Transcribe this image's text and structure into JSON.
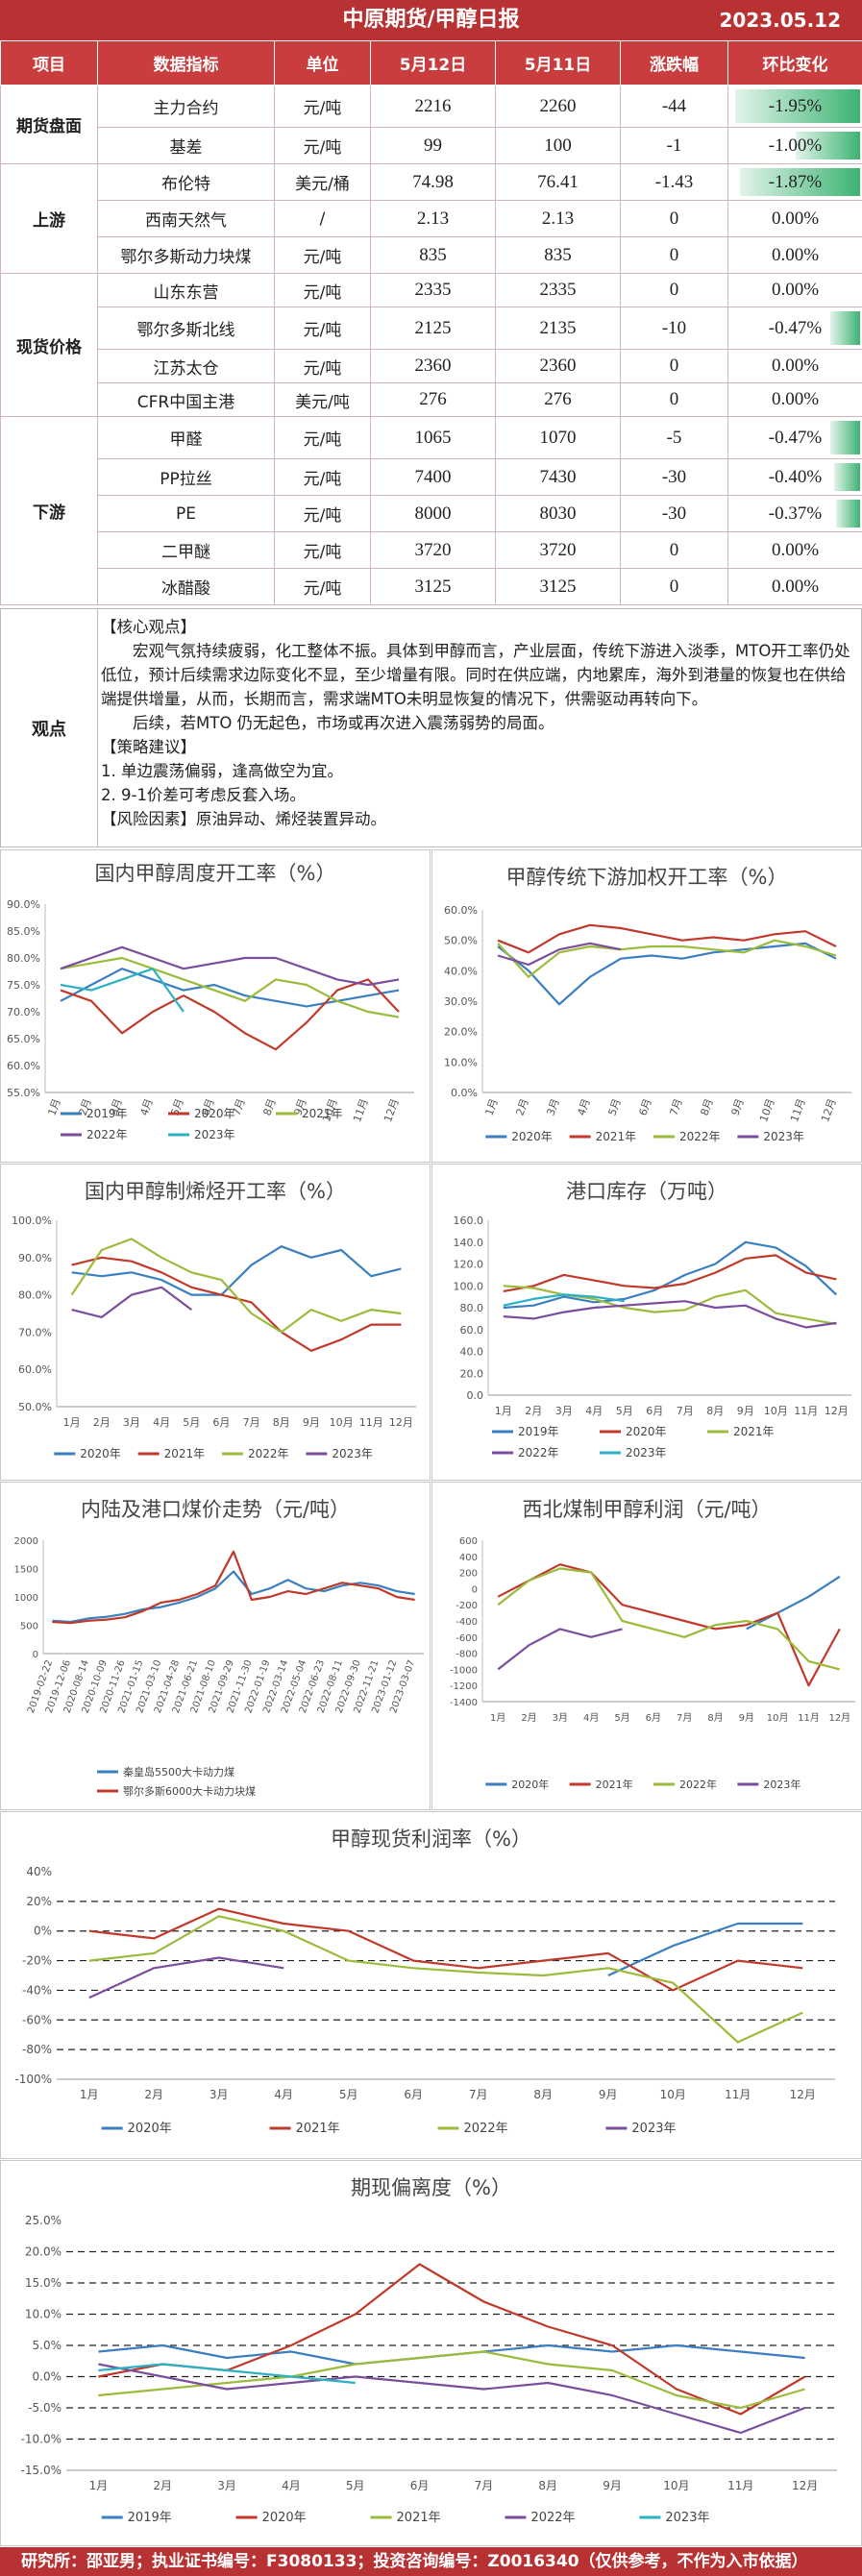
{
  "header": {
    "title": "中原期货/甲醇日报",
    "date": "2023.05.12"
  },
  "table": {
    "columns": [
      "项目",
      "数据指标",
      "单位",
      "5月12日",
      "5月11日",
      "涨跌幅",
      "环比变化"
    ],
    "groups": [
      {
        "category": "期货盘面",
        "rows": [
          {
            "name": "主力合约",
            "unit": "元/吨",
            "d1": "2216",
            "d2": "2260",
            "chg": "-44",
            "pct": "-1.95%",
            "bar": -1.95
          },
          {
            "name": "基差",
            "unit": "元/吨",
            "d1": "99",
            "d2": "100",
            "chg": "-1",
            "pct": "-1.00%",
            "bar": -1.0
          }
        ]
      },
      {
        "category": "上游",
        "rows": [
          {
            "name": "布伦特",
            "unit": "美元/桶",
            "d1": "74.98",
            "d2": "76.41",
            "chg": "-1.43",
            "pct": "-1.87%",
            "bar": -1.87
          },
          {
            "name": "西南天然气",
            "unit": "/",
            "d1": "2.13",
            "d2": "2.13",
            "chg": "0",
            "pct": "0.00%",
            "bar": 0
          },
          {
            "name": "鄂尔多斯动力块煤",
            "unit": "元/吨",
            "d1": "835",
            "d2": "835",
            "chg": "0",
            "pct": "0.00%",
            "bar": 0
          }
        ]
      },
      {
        "category": "现货价格",
        "rows": [
          {
            "name": "山东东营",
            "unit": "元/吨",
            "d1": "2335",
            "d2": "2335",
            "chg": "0",
            "pct": "0.00%",
            "bar": 0
          },
          {
            "name": "鄂尔多斯北线",
            "unit": "元/吨",
            "d1": "2125",
            "d2": "2135",
            "chg": "-10",
            "pct": "-0.47%",
            "bar": -0.47
          },
          {
            "name": "江苏太仓",
            "unit": "元/吨",
            "d1": "2360",
            "d2": "2360",
            "chg": "0",
            "pct": "0.00%",
            "bar": 0
          },
          {
            "name": "CFR中国主港",
            "unit": "美元/吨",
            "d1": "276",
            "d2": "276",
            "chg": "0",
            "pct": "0.00%",
            "bar": 0
          }
        ]
      },
      {
        "category": "下游",
        "rows": [
          {
            "name": "甲醛",
            "unit": "元/吨",
            "d1": "1065",
            "d2": "1070",
            "chg": "-5",
            "pct": "-0.47%",
            "bar": -0.47
          },
          {
            "name": "PP拉丝",
            "unit": "元/吨",
            "d1": "7400",
            "d2": "7430",
            "chg": "-30",
            "pct": "-0.40%",
            "bar": -0.4
          },
          {
            "name": "PE",
            "unit": "元/吨",
            "d1": "8000",
            "d2": "8030",
            "chg": "-30",
            "pct": "-0.37%",
            "bar": -0.37
          },
          {
            "name": "二甲醚",
            "unit": "元/吨",
            "d1": "3720",
            "d2": "3720",
            "chg": "0",
            "pct": "0.00%",
            "bar": 0
          },
          {
            "name": "冰醋酸",
            "unit": "元/吨",
            "d1": "3125",
            "d2": "3125",
            "chg": "0",
            "pct": "0.00%",
            "bar": 0
          }
        ]
      }
    ]
  },
  "viewpoint": {
    "label": "观点",
    "lines": [
      "【核心观点】",
      "宏观气氛持续疲弱，化工整体不振。具体到甲醇而言，产业层面，传统下游进入淡季，MTO开工率仍处低位，预计后续需求边际变化不显，至少增量有限。同时在供应端，内地累库，海外到港量的恢复也在供给端提供增量，从而，长期而言，需求端MTO未明显恢复的情况下，供需驱动再转向下。",
      "后续，若MTO 仍无起色，市场或再次进入震荡弱势的局面。",
      "【策略建议】",
      "1. 单边震荡偏弱，逢高做空为宜。",
      "2. 9-1价差可考虑反套入场。",
      "【风险因素】原油异动、烯烃装置异动。"
    ]
  },
  "colors": {
    "y2019": "#3a7fbf",
    "y2020": "#c0392b",
    "y2021": "#9bbb3b",
    "y2022": "#7b4d9c",
    "y2023": "#2bb0c4",
    "accent": "#b83234",
    "bar": "#3cb371"
  },
  "footer": {
    "text": "研究所：邵亚男；执业证书编号：F3080133；投资咨询编号：Z0016340（仅供参考，不作为入市依据）"
  },
  "chart_data": [
    {
      "id": "c1",
      "type": "line",
      "title": "国内甲醇周度开工率（%）",
      "x": [
        "1月",
        "2月",
        "3月",
        "4月",
        "5月",
        "6月",
        "7月",
        "8月",
        "9月",
        "10月",
        "11月",
        "12月"
      ],
      "ylim": [
        55,
        90
      ],
      "yticks": [
        "90.0%",
        "85.0%",
        "80.0%",
        "75.0%",
        "70.0%",
        "65.0%",
        "60.0%",
        "55.0%"
      ],
      "series": [
        {
          "name": "2019年",
          "color": "#3a7fbf",
          "values": [
            72,
            75,
            78,
            76,
            74,
            75,
            73,
            72,
            71,
            72,
            73,
            74
          ]
        },
        {
          "name": "2020年",
          "color": "#c0392b",
          "values": [
            74,
            72,
            66,
            70,
            73,
            70,
            66,
            63,
            68,
            74,
            76,
            70
          ]
        },
        {
          "name": "2021年",
          "color": "#9bbb3b",
          "values": [
            78,
            79,
            80,
            78,
            76,
            74,
            72,
            76,
            75,
            72,
            70,
            69
          ]
        },
        {
          "name": "2022年",
          "color": "#7b4d9c",
          "values": [
            78,
            80,
            82,
            80,
            78,
            79,
            80,
            80,
            78,
            76,
            75,
            76
          ]
        },
        {
          "name": "2023年",
          "color": "#2bb0c4",
          "values": [
            75,
            74,
            76,
            78,
            70,
            null,
            null,
            null,
            null,
            null,
            null,
            null
          ]
        }
      ]
    },
    {
      "id": "c2",
      "type": "line",
      "title": "甲醇传统下游加权开工率（%）",
      "x": [
        "1月",
        "2月",
        "3月",
        "4月",
        "5月",
        "6月",
        "7月",
        "8月",
        "9月",
        "10月",
        "11月",
        "12月"
      ],
      "ylim": [
        0,
        60
      ],
      "yticks": [
        "60.0%",
        "50.0%",
        "40.0%",
        "30.0%",
        "20.0%",
        "10.0%",
        "0.0%"
      ],
      "series": [
        {
          "name": "2020年",
          "color": "#3a7fbf",
          "values": [
            48,
            40,
            29,
            38,
            44,
            45,
            44,
            46,
            47,
            48,
            49,
            44
          ]
        },
        {
          "name": "2021年",
          "color": "#c0392b",
          "values": [
            50,
            46,
            52,
            55,
            54,
            52,
            50,
            51,
            50,
            52,
            53,
            48
          ]
        },
        {
          "name": "2022年",
          "color": "#9bbb3b",
          "values": [
            49,
            38,
            46,
            48,
            47,
            48,
            48,
            47,
            46,
            50,
            48,
            45
          ]
        },
        {
          "name": "2023年",
          "color": "#7b4d9c",
          "values": [
            45,
            42,
            47,
            49,
            47,
            null,
            null,
            null,
            null,
            null,
            null,
            null
          ]
        }
      ]
    },
    {
      "id": "c3",
      "type": "line",
      "title": "国内甲醇制烯烃开工率（%）",
      "x": [
        "1月",
        "2月",
        "3月",
        "4月",
        "5月",
        "6月",
        "7月",
        "8月",
        "9月",
        "10月",
        "11月",
        "12月"
      ],
      "ylim": [
        50,
        100
      ],
      "yticks": [
        "100.0%",
        "90.0%",
        "80.0%",
        "70.0%",
        "60.0%",
        "50.0%"
      ],
      "series": [
        {
          "name": "2020年",
          "color": "#3a7fbf",
          "values": [
            86,
            85,
            86,
            84,
            80,
            80,
            88,
            93,
            90,
            92,
            85,
            87
          ]
        },
        {
          "name": "2021年",
          "color": "#c0392b",
          "values": [
            88,
            90,
            89,
            86,
            82,
            80,
            78,
            70,
            65,
            68,
            72,
            72
          ]
        },
        {
          "name": "2022年",
          "color": "#9bbb3b",
          "values": [
            80,
            92,
            95,
            90,
            86,
            84,
            75,
            70,
            76,
            73,
            76,
            75
          ]
        },
        {
          "name": "2023年",
          "color": "#7b4d9c",
          "values": [
            76,
            74,
            80,
            82,
            76,
            null,
            null,
            null,
            null,
            null,
            null,
            null
          ]
        }
      ]
    },
    {
      "id": "c4",
      "type": "line",
      "title": "港口库存（万吨）",
      "x": [
        "1月",
        "2月",
        "3月",
        "4月",
        "5月",
        "6月",
        "7月",
        "8月",
        "9月",
        "10月",
        "11月",
        "12月"
      ],
      "ylim": [
        0,
        160
      ],
      "yticks": [
        "160.0",
        "140.0",
        "120.0",
        "100.0",
        "80.0",
        "60.0",
        "40.0",
        "20.0",
        "0.0"
      ],
      "series": [
        {
          "name": "2019年",
          "color": "#3a7fbf",
          "values": [
            80,
            82,
            90,
            85,
            88,
            96,
            110,
            120,
            140,
            135,
            118,
            92
          ]
        },
        {
          "name": "2020年",
          "color": "#c0392b",
          "values": [
            95,
            100,
            110,
            105,
            100,
            98,
            102,
            112,
            125,
            128,
            112,
            106
          ]
        },
        {
          "name": "2021年",
          "color": "#9bbb3b",
          "values": [
            100,
            98,
            92,
            88,
            80,
            76,
            78,
            90,
            96,
            75,
            70,
            65
          ]
        },
        {
          "name": "2022年",
          "color": "#7b4d9c",
          "values": [
            72,
            70,
            76,
            80,
            82,
            84,
            86,
            80,
            82,
            70,
            62,
            66
          ]
        },
        {
          "name": "2023年",
          "color": "#2bb0c4",
          "values": [
            82,
            88,
            92,
            90,
            86,
            null,
            null,
            null,
            null,
            null,
            null,
            null
          ]
        }
      ]
    },
    {
      "id": "c5",
      "type": "line",
      "title": "内陆及港口煤价走势（元/吨）",
      "x": [
        "2019-02-22",
        "2019-12-06",
        "2020-08-14",
        "2020-10-09",
        "2020-11-26",
        "2021-01-15",
        "2021-03-10",
        "2021-04-28",
        "2021-06-21",
        "2021-08-10",
        "2021-09-29",
        "2021-11-30",
        "2022-01-19",
        "2022-03-14",
        "2022-05-04",
        "2022-06-23",
        "2022-08-11",
        "2022-09-30",
        "2022-11-21",
        "2023-01-12",
        "2023-03-07"
      ],
      "ylim": [
        0,
        2000
      ],
      "yticks": [
        "2000",
        "1500",
        "1000",
        "500",
        "0"
      ],
      "series": [
        {
          "name": "秦皇岛5500大卡动力煤",
          "color": "#3a7fbf",
          "values": [
            580,
            560,
            620,
            650,
            700,
            780,
            820,
            900,
            1000,
            1150,
            1450,
            1050,
            1150,
            1300,
            1150,
            1100,
            1200,
            1250,
            1200,
            1100,
            1050
          ]
        },
        {
          "name": "鄂尔多斯6000大卡动力块煤",
          "color": "#c0392b",
          "values": [
            560,
            540,
            580,
            600,
            640,
            750,
            900,
            950,
            1050,
            1200,
            1800,
            950,
            1000,
            1100,
            1050,
            1150,
            1250,
            1200,
            1150,
            1000,
            950
          ]
        }
      ]
    },
    {
      "id": "c6",
      "type": "line",
      "title": "西北煤制甲醇利润（元/吨）",
      "x": [
        "1月",
        "2月",
        "3月",
        "4月",
        "5月",
        "6月",
        "7月",
        "8月",
        "9月",
        "10月",
        "11月",
        "12月"
      ],
      "ylim": [
        -1400,
        600
      ],
      "yticks": [
        "600",
        "400",
        "200",
        "0",
        "-200",
        "-400",
        "-600",
        "-800",
        "-1000",
        "-1200",
        "-1400"
      ],
      "series": [
        {
          "name": "2020年",
          "color": "#3a7fbf",
          "values": [
            null,
            null,
            null,
            null,
            null,
            null,
            null,
            null,
            -500,
            -300,
            -100,
            150
          ]
        },
        {
          "name": "2021年",
          "color": "#c0392b",
          "values": [
            -100,
            100,
            300,
            200,
            -200,
            -300,
            -400,
            -500,
            -450,
            -300,
            -1200,
            -500
          ]
        },
        {
          "name": "2022年",
          "color": "#9bbb3b",
          "values": [
            -200,
            100,
            250,
            200,
            -400,
            -500,
            -600,
            -450,
            -400,
            -500,
            -900,
            -1000
          ]
        },
        {
          "name": "2023年",
          "color": "#7b4d9c",
          "values": [
            -1000,
            -700,
            -500,
            -600,
            -500,
            null,
            null,
            null,
            null,
            null,
            null,
            null
          ]
        }
      ]
    },
    {
      "id": "c7",
      "type": "line",
      "title": "甲醇现货利润率（%）",
      "x": [
        "1月",
        "2月",
        "3月",
        "4月",
        "5月",
        "6月",
        "7月",
        "8月",
        "9月",
        "10月",
        "11月",
        "12月"
      ],
      "ylim": [
        -100,
        40
      ],
      "yticks": [
        "40%",
        "20%",
        "0%",
        "-20%",
        "-40%",
        "-60%",
        "-80%",
        "-100%"
      ],
      "series": [
        {
          "name": "2020年",
          "color": "#3a7fbf",
          "values": [
            null,
            null,
            null,
            null,
            null,
            null,
            null,
            null,
            -30,
            -10,
            5,
            5
          ]
        },
        {
          "name": "2021年",
          "color": "#c0392b",
          "values": [
            0,
            -5,
            15,
            5,
            0,
            -20,
            -25,
            -20,
            -15,
            -40,
            -20,
            -25
          ]
        },
        {
          "name": "2022年",
          "color": "#9bbb3b",
          "values": [
            -20,
            -15,
            10,
            0,
            -20,
            -25,
            -28,
            -30,
            -25,
            -35,
            -75,
            -55
          ]
        },
        {
          "name": "2023年",
          "color": "#7b4d9c",
          "values": [
            -45,
            -25,
            -18,
            -25,
            null,
            null,
            null,
            null,
            null,
            null,
            null,
            null
          ]
        }
      ]
    },
    {
      "id": "c8",
      "type": "line",
      "title": "期现偏离度（%）",
      "x": [
        "1月",
        "2月",
        "3月",
        "4月",
        "5月",
        "6月",
        "7月",
        "8月",
        "9月",
        "10月",
        "11月",
        "12月"
      ],
      "ylim": [
        -15,
        25
      ],
      "yticks": [
        "25.0%",
        "20.0%",
        "15.0%",
        "10.0%",
        "5.0%",
        "0.0%",
        "-5.0%",
        "-10.0%",
        "-15.0%"
      ],
      "series": [
        {
          "name": "2019年",
          "color": "#3a7fbf",
          "values": [
            4,
            5,
            3,
            4,
            2,
            3,
            4,
            5,
            4,
            5,
            4,
            3
          ]
        },
        {
          "name": "2020年",
          "color": "#c0392b",
          "values": [
            0,
            2,
            1,
            5,
            10,
            18,
            12,
            8,
            5,
            -2,
            -6,
            0
          ]
        },
        {
          "name": "2021年",
          "color": "#9bbb3b",
          "values": [
            -3,
            -2,
            -1,
            0,
            2,
            3,
            4,
            2,
            1,
            -3,
            -5,
            -2
          ]
        },
        {
          "name": "2022年",
          "color": "#7b4d9c",
          "values": [
            2,
            0,
            -2,
            -1,
            0,
            -1,
            -2,
            -1,
            -3,
            -6,
            -9,
            -5
          ]
        },
        {
          "name": "2023年",
          "color": "#2bb0c4",
          "values": [
            1,
            2,
            1,
            0,
            -1,
            null,
            null,
            null,
            null,
            null,
            null,
            null
          ]
        }
      ]
    }
  ]
}
